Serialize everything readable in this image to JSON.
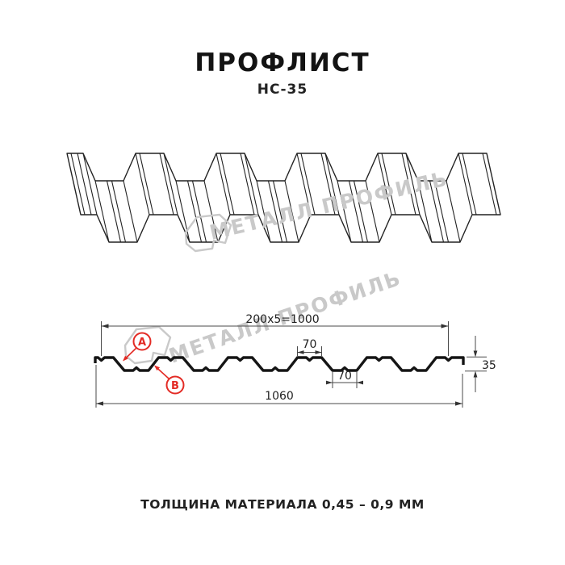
{
  "header": {
    "title": "ПРОФЛИСТ",
    "subtitle": "НС-35"
  },
  "footer": {
    "thickness_note": "ТОЛЩИНА МАТЕРИАЛА 0,45 – 0,9 ММ"
  },
  "watermark": {
    "brand_text": "МЕТАЛЛ ПРОФИЛЬ"
  },
  "cross_section": {
    "dim_rib_pitch_total": "200x5=1000",
    "dim_top_flange_width": "70",
    "dim_bottom_flange_width": "70",
    "dim_overall_width": "1060",
    "dim_profile_height": "35",
    "marker_a": "A",
    "marker_b": "B"
  },
  "colors": {
    "accent_red": "#e32b25",
    "line_black": "#151515",
    "watermark_gray": "#c9c9c9"
  }
}
